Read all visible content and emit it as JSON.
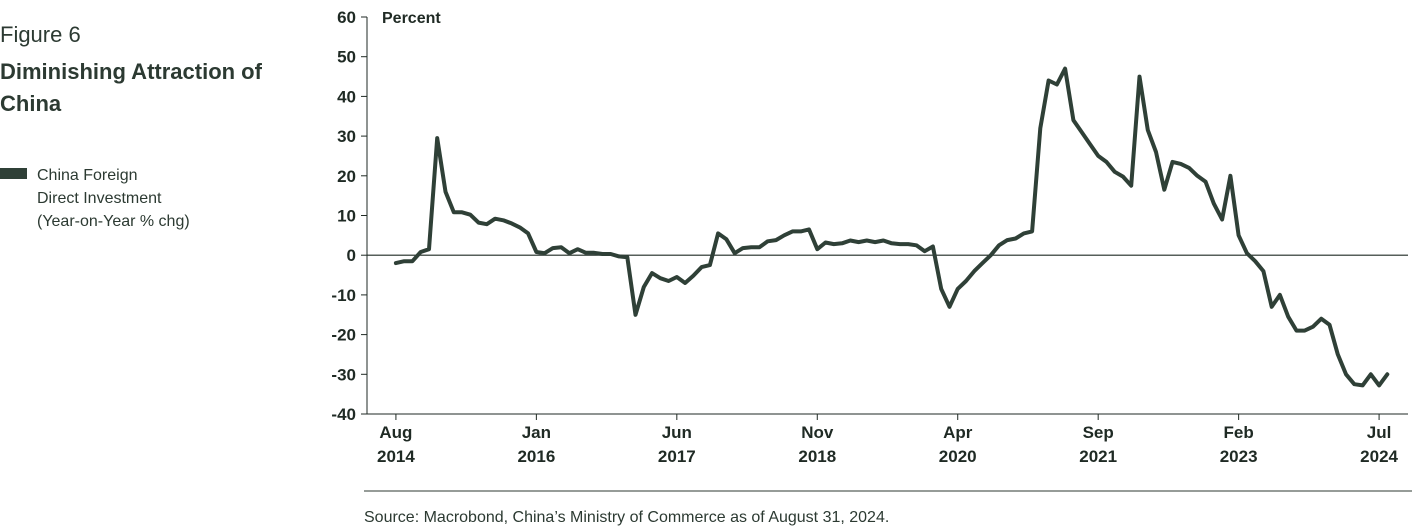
{
  "figure_label": "Figure 6",
  "title": "Diminishing Attraction of China",
  "legend": {
    "label": "China Foreign\nDirect Investment\n(Year-on-Year % chg)",
    "color": "#2f4037"
  },
  "source": "Source: Macrobond, China’s Ministry of Commerce as of August 31, 2024.",
  "chart_data": {
    "type": "line",
    "title": "Diminishing Attraction of China",
    "ylabel": "Percent",
    "xlabel": "",
    "ylim": [
      -40,
      60
    ],
    "yticks": [
      60,
      50,
      40,
      30,
      20,
      10,
      0,
      -10,
      -20,
      -30,
      -40
    ],
    "ytick_labels": [
      "60",
      "50",
      "40",
      "30",
      "20",
      "10",
      "0",
      "-10",
      "-20",
      "-30",
      "-40"
    ],
    "xticks": [
      {
        "line1": "Aug",
        "line2": "2014",
        "t": 0
      },
      {
        "line1": "Jan",
        "line2": "2016",
        "t": 17
      },
      {
        "line1": "Jun",
        "line2": "2017",
        "t": 34
      },
      {
        "line1": "Nov",
        "line2": "2018",
        "t": 51
      },
      {
        "line1": "Apr",
        "line2": "2020",
        "t": 68
      },
      {
        "line1": "Sep",
        "line2": "2021",
        "t": 85
      },
      {
        "line1": "Feb",
        "line2": "2023",
        "t": 102
      },
      {
        "line1": "Jul",
        "line2": "2024",
        "t": 119
      }
    ],
    "xlim": [
      -3.5,
      122.5
    ],
    "grid": false,
    "zero_line": true,
    "series": [
      {
        "name": "China Foreign Direct Investment (Year-on-Year % chg)",
        "color": "#2f4037",
        "points": [
          [
            0,
            -2.0
          ],
          [
            1,
            -1.5
          ],
          [
            2,
            -1.5
          ],
          [
            3,
            0.8
          ],
          [
            4,
            1.5
          ],
          [
            5,
            29.5
          ],
          [
            6,
            16.0
          ],
          [
            7,
            10.8
          ],
          [
            8,
            10.8
          ],
          [
            9,
            10.2
          ],
          [
            10,
            8.2
          ],
          [
            11,
            7.8
          ],
          [
            12,
            9.2
          ],
          [
            13,
            8.8
          ],
          [
            14,
            8.0
          ],
          [
            15,
            7.0
          ],
          [
            16,
            5.5
          ],
          [
            17,
            0.8
          ],
          [
            18,
            0.5
          ],
          [
            19,
            1.8
          ],
          [
            20,
            2.0
          ],
          [
            21,
            0.5
          ],
          [
            22,
            1.5
          ],
          [
            23,
            0.6
          ],
          [
            24,
            0.6
          ],
          [
            25,
            0.3
          ],
          [
            26,
            0.3
          ],
          [
            27,
            -0.3
          ],
          [
            28,
            -0.5
          ],
          [
            29,
            -15.0
          ],
          [
            30,
            -8.0
          ],
          [
            31,
            -4.5
          ],
          [
            32,
            -5.8
          ],
          [
            33,
            -6.5
          ],
          [
            34,
            -5.5
          ],
          [
            35,
            -7.0
          ],
          [
            36,
            -5.2
          ],
          [
            37,
            -3.0
          ],
          [
            38,
            -2.5
          ],
          [
            39,
            5.5
          ],
          [
            40,
            4.0
          ],
          [
            41,
            0.5
          ],
          [
            42,
            1.8
          ],
          [
            43,
            2.0
          ],
          [
            44,
            2.0
          ],
          [
            45,
            3.5
          ],
          [
            46,
            3.8
          ],
          [
            47,
            5.0
          ],
          [
            48,
            6.0
          ],
          [
            49,
            6.0
          ],
          [
            50,
            6.5
          ],
          [
            51,
            1.5
          ],
          [
            52,
            3.2
          ],
          [
            53,
            2.8
          ],
          [
            54,
            3.0
          ],
          [
            55,
            3.7
          ],
          [
            56,
            3.3
          ],
          [
            57,
            3.7
          ],
          [
            58,
            3.3
          ],
          [
            59,
            3.7
          ],
          [
            60,
            3.0
          ],
          [
            61,
            2.8
          ],
          [
            62,
            2.8
          ],
          [
            63,
            2.5
          ],
          [
            64,
            1.0
          ],
          [
            65,
            2.2
          ],
          [
            66,
            -8.5
          ],
          [
            67,
            -13.0
          ],
          [
            68,
            -8.5
          ],
          [
            69,
            -6.5
          ],
          [
            70,
            -4.0
          ],
          [
            71,
            -2.0
          ],
          [
            72,
            0.0
          ],
          [
            73,
            2.5
          ],
          [
            74,
            3.8
          ],
          [
            75,
            4.2
          ],
          [
            76,
            5.5
          ],
          [
            77,
            6.0
          ],
          [
            78,
            32.0
          ],
          [
            79,
            44.0
          ],
          [
            80,
            43.0
          ],
          [
            81,
            47.0
          ],
          [
            82,
            34.0
          ],
          [
            83,
            31.0
          ],
          [
            84,
            28.0
          ],
          [
            85,
            25.0
          ],
          [
            86,
            23.5
          ],
          [
            87,
            21.0
          ],
          [
            88,
            19.8
          ],
          [
            89,
            17.5
          ],
          [
            90,
            45.0
          ],
          [
            91,
            31.5
          ],
          [
            92,
            26.0
          ],
          [
            93,
            16.5
          ],
          [
            94,
            23.5
          ],
          [
            95,
            23.0
          ],
          [
            96,
            22.0
          ],
          [
            97,
            20.0
          ],
          [
            98,
            18.5
          ],
          [
            99,
            13.0
          ],
          [
            100,
            9.0
          ],
          [
            101,
            20.0
          ],
          [
            102,
            5.0
          ],
          [
            103,
            0.5
          ],
          [
            104,
            -1.5
          ],
          [
            105,
            -4.0
          ],
          [
            106,
            -13.0
          ],
          [
            107,
            -10.0
          ],
          [
            108,
            -15.5
          ],
          [
            109,
            -19.0
          ],
          [
            110,
            -19.0
          ],
          [
            111,
            -18.0
          ],
          [
            112,
            -16.0
          ],
          [
            113,
            -17.5
          ],
          [
            114,
            -25.0
          ],
          [
            115,
            -30.0
          ],
          [
            116,
            -32.5
          ],
          [
            117,
            -32.8
          ],
          [
            118,
            -30.0
          ],
          [
            119,
            -32.8
          ],
          [
            120,
            -30.0
          ]
        ]
      }
    ]
  }
}
